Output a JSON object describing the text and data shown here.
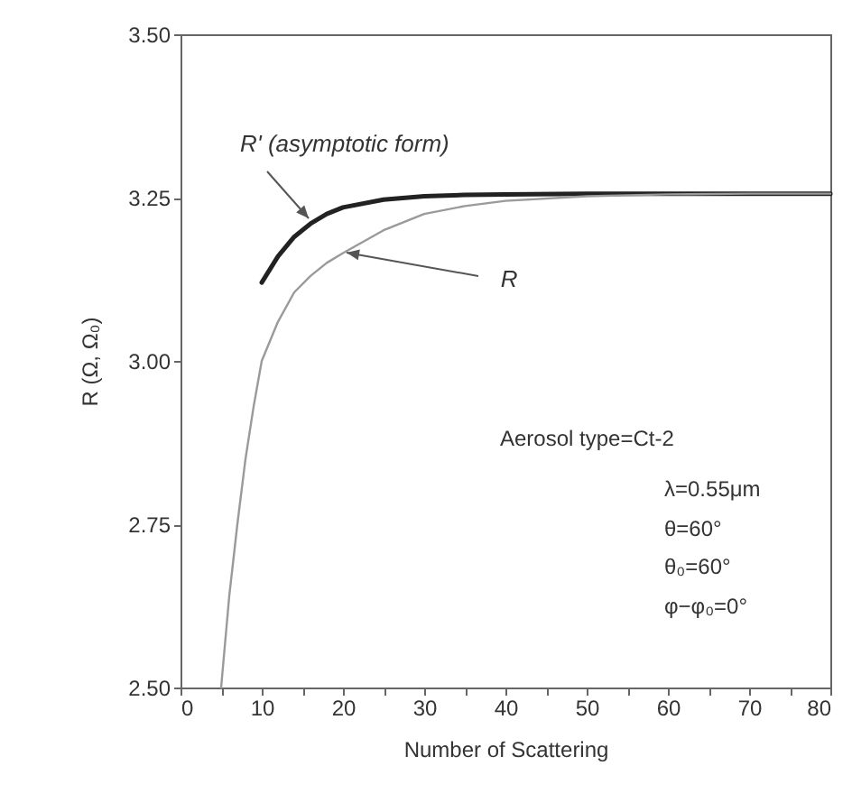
{
  "chart_data": {
    "type": "line",
    "xlabel": "Number of Scattering",
    "ylabel": "R (Ω, Ω₀)",
    "xlim": [
      0,
      80
    ],
    "ylim": [
      2.5,
      3.5
    ],
    "xticks": [
      0,
      {
        "value": 5,
        "label": null
      },
      10,
      {
        "value": 15,
        "label": null
      },
      20,
      {
        "value": 25,
        "label": null
      },
      30,
      {
        "value": 35,
        "label": null
      },
      40,
      {
        "value": 45,
        "label": null
      },
      50,
      {
        "value": 55,
        "label": null
      },
      60,
      {
        "value": 65,
        "label": null
      },
      70,
      {
        "value": 75,
        "label": null
      },
      80
    ],
    "yticks": [
      {
        "value": 2.5,
        "label": "2.50"
      },
      {
        "value": 2.75,
        "label": "2.75"
      },
      {
        "value": 3,
        "label": "3.00"
      },
      {
        "value": 3.25,
        "label": "3.25"
      },
      {
        "value": 3.5,
        "label": "3.50"
      }
    ],
    "grid": false,
    "marker": "none",
    "line_style": "solid",
    "series": [
      {
        "name": "R' (asymptotic form)",
        "color": "#222222",
        "x": [
          10,
          12,
          14,
          16,
          18,
          20,
          25,
          30,
          35,
          40,
          50,
          60,
          70,
          80
        ],
        "values": [
          3.12,
          3.16,
          3.19,
          3.21,
          3.225,
          3.235,
          3.247,
          3.252,
          3.254,
          3.255,
          3.256,
          3.256,
          3.256,
          3.256
        ]
      },
      {
        "name": "R",
        "color": "#9a9a9a",
        "x": [
          5,
          6,
          7,
          8,
          9,
          10,
          12,
          14,
          16,
          18,
          20,
          25,
          30,
          35,
          40,
          50,
          60,
          70,
          80
        ],
        "values": [
          2.5,
          2.64,
          2.75,
          2.85,
          2.93,
          3.0,
          3.06,
          3.105,
          3.13,
          3.15,
          3.165,
          3.2,
          3.225,
          3.237,
          3.245,
          3.252,
          3.255,
          3.256,
          3.256
        ]
      }
    ],
    "annotations": [
      "Aerosol type=Ct-2",
      "λ=0.55μm",
      "θ=60°",
      "θ₀=60°",
      "φ−φ₀=0°"
    ]
  }
}
